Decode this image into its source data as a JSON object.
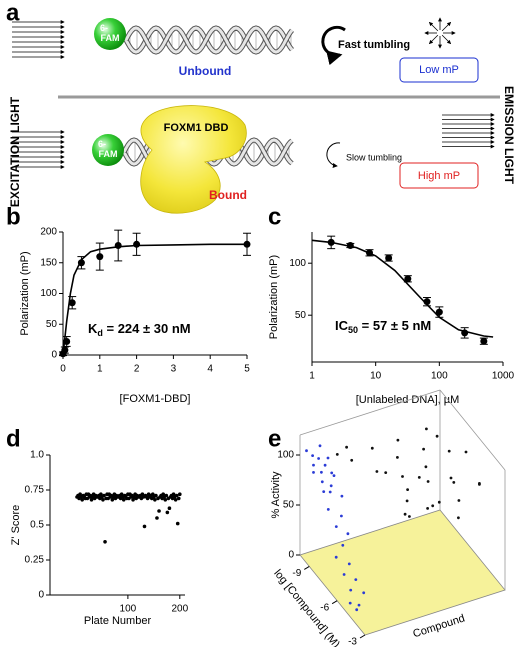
{
  "diagram": {
    "label": "a",
    "top": {
      "fluor": [
        "6-",
        "FAM"
      ],
      "state": "Unbound",
      "tumbling": "Fast tumbling",
      "readout": "Low mP"
    },
    "bottom": {
      "fluor": [
        "6-",
        "FAM"
      ],
      "protein": "FOXM1 DBD",
      "state": "Bound",
      "tumbling": "Slow tumbling",
      "readout": "High mP"
    },
    "left": "EXCITATION LIGHT",
    "right": "EMISSION LIGHT"
  },
  "chart_data": [
    {
      "type": "scatter",
      "label": "b",
      "xlabel": "[FOXM1-DBD]",
      "ylabel": "Polarization (mP)",
      "annotation": {
        "text": "K",
        "sub": "d",
        "rest": " = 224 ± 30 nM"
      },
      "xlim": [
        0,
        5
      ],
      "xticks": [
        0,
        1,
        2,
        3,
        4,
        5
      ],
      "ylim": [
        0,
        200
      ],
      "yticks": [
        0,
        50,
        100,
        150,
        200
      ],
      "series": [
        {
          "mode": "points",
          "color": "#000000",
          "x": [
            0,
            0.05,
            0.1,
            0.25,
            0.5,
            1,
            1.5,
            2,
            5
          ],
          "values": [
            2,
            8,
            22,
            85,
            150,
            160,
            178,
            180,
            180
          ],
          "errors": [
            3,
            5,
            8,
            10,
            10,
            22,
            25,
            18,
            18
          ]
        },
        {
          "mode": "line",
          "color": "#000000",
          "x": [
            0,
            0.1,
            0.2,
            0.3,
            0.5,
            0.75,
            1,
            1.5,
            2,
            3,
            4,
            5
          ],
          "values": [
            0,
            55,
            100,
            130,
            155,
            168,
            172,
            176,
            178,
            179,
            180,
            180
          ]
        }
      ]
    },
    {
      "type": "scatter",
      "label": "c",
      "xlabel": "[Unlabeled DNA], µM",
      "ylabel": "Polarization (mP)",
      "annotation": {
        "text": "IC",
        "sub": "50",
        "rest": " = 57 ± 5 nM"
      },
      "xscale": "log",
      "xlim": [
        1,
        1000
      ],
      "xticks": [
        1,
        10,
        100,
        1000
      ],
      "ylim": [
        5,
        130
      ],
      "yticks": [
        50,
        100
      ],
      "series": [
        {
          "mode": "points",
          "color": "#000000",
          "x": [
            2,
            4,
            8,
            16,
            32,
            64,
            100,
            250,
            500
          ],
          "values": [
            120,
            117,
            110,
            105,
            85,
            63,
            53,
            33,
            25
          ],
          "errors": [
            6,
            2,
            3,
            3,
            3,
            4,
            5,
            5,
            3
          ]
        },
        {
          "mode": "line",
          "color": "#000000",
          "x": [
            1,
            2,
            5,
            10,
            20,
            50,
            100,
            200,
            500,
            700
          ],
          "values": [
            122,
            120,
            115,
            107,
            93,
            67,
            48,
            36,
            30,
            29
          ]
        }
      ]
    },
    {
      "type": "scatter",
      "label": "d",
      "xlabel": "Plate Number",
      "ylabel": "Z' Score",
      "xlim": [
        -50,
        210
      ],
      "xticks": [
        100,
        200
      ],
      "ylim": [
        0,
        1
      ],
      "yticks": [
        0,
        0.25,
        0.5,
        0.75,
        {
          "value": 1,
          "label": "1.0"
        }
      ],
      "series": [
        {
          "mode": "points",
          "color": "#000000",
          "x": [
            2,
            4,
            6,
            8,
            10,
            12,
            14,
            16,
            18,
            20,
            22,
            24,
            26,
            28,
            30,
            32,
            34,
            36,
            38,
            40,
            42,
            44,
            46,
            48,
            50,
            52,
            54,
            56,
            58,
            60,
            62,
            64,
            66,
            68,
            70,
            72,
            74,
            76,
            78,
            80,
            82,
            84,
            86,
            88,
            90,
            92,
            94,
            96,
            98,
            100,
            102,
            104,
            106,
            108,
            110,
            112,
            114,
            116,
            118,
            120,
            122,
            124,
            126,
            128,
            130,
            132,
            134,
            136,
            138,
            140,
            142,
            144,
            146,
            148,
            150,
            152,
            154,
            156,
            158,
            160,
            162,
            164,
            166,
            168,
            170,
            172,
            174,
            176,
            178,
            180,
            182,
            184,
            186,
            188,
            190,
            192,
            194,
            196,
            198,
            200
          ],
          "values": [
            0.7,
            0.71,
            0.69,
            0.72,
            0.7,
            0.68,
            0.71,
            0.7,
            0.69,
            0.72,
            0.69,
            0.72,
            0.7,
            0.71,
            0.68,
            0.7,
            0.72,
            0.69,
            0.71,
            0.7,
            0.7,
            0.71,
            0.69,
            0.72,
            0.7,
            0.68,
            0.71,
            0.38,
            0.69,
            0.72,
            0.69,
            0.72,
            0.7,
            0.71,
            0.68,
            0.7,
            0.72,
            0.69,
            0.71,
            0.7,
            0.7,
            0.71,
            0.69,
            0.72,
            0.7,
            0.68,
            0.71,
            0.7,
            0.69,
            0.72,
            0.69,
            0.72,
            0.7,
            0.71,
            0.68,
            0.7,
            0.72,
            0.69,
            0.71,
            0.7,
            0.7,
            0.71,
            0.69,
            0.72,
            0.7,
            0.49,
            0.71,
            0.7,
            0.69,
            0.72,
            0.7,
            0.71,
            0.69,
            0.72,
            0.7,
            0.68,
            0.71,
            0.55,
            0.69,
            0.6,
            0.7,
            0.71,
            0.69,
            0.72,
            0.7,
            0.68,
            0.71,
            0.59,
            0.69,
            0.62,
            0.7,
            0.71,
            0.69,
            0.72,
            0.7,
            0.68,
            0.71,
            0.51,
            0.69,
            0.72
          ]
        }
      ]
    },
    {
      "type": "scatter3d",
      "label": "e",
      "xlabel": "log [Compound] (M)",
      "ylabel": "% Activity",
      "zlabel": "Compound",
      "xlim": [
        -10,
        -3
      ],
      "xticks": [
        -9,
        -6,
        -3
      ],
      "ylim": [
        0,
        120
      ],
      "yticks": [
        0,
        50,
        100
      ],
      "zlim": [
        0,
        100
      ],
      "floor_color": "#f6f29a",
      "series": [
        {
          "color": "#2b3cd6",
          "x": [
            -9.6,
            -9.4,
            -9.2,
            -9.0,
            -8.8,
            -8.6,
            -8.4,
            -8.2,
            -8.0,
            -7.8,
            -7.6,
            -7.4,
            -7.2,
            -7.0,
            -6.8,
            -6.6,
            -6.4,
            -6.2,
            -6.0,
            -5.8,
            -5.6,
            -5.4,
            -5.2,
            -5.0,
            -4.8,
            -9.5,
            -9.1,
            -8.7,
            -8.3,
            -7.9
          ],
          "z": [
            2,
            5,
            8,
            3,
            10,
            6,
            12,
            4,
            9,
            7,
            14,
            3,
            11,
            6,
            13,
            8,
            2,
            10,
            5,
            12,
            7,
            15,
            4,
            9,
            6,
            11,
            14,
            1,
            13,
            3
          ],
          "values": [
            108,
            104,
            102,
            100,
            99,
            96,
            95,
            92,
            88,
            85,
            80,
            74,
            66,
            60,
            52,
            45,
            38,
            30,
            24,
            18,
            12,
            8,
            5,
            3,
            2,
            110,
            101,
            97,
            93,
            86
          ]
        },
        {
          "color": "#111111",
          "x": [
            -9.5,
            -9,
            -8.5,
            -8,
            -7.5,
            -7,
            -6.5,
            -6,
            -5.5,
            -5,
            -4.5,
            -4,
            -3.5,
            -9.2,
            -8.2,
            -7.2,
            -6.2,
            -5.2,
            -4.2,
            -3.2,
            -8.8,
            -7.8,
            -6.8,
            -5.8,
            -4.8,
            -3.8,
            -9,
            -7,
            -5,
            -3.5
          ],
          "z": [
            30,
            45,
            60,
            75,
            90,
            35,
            50,
            65,
            80,
            95,
            40,
            55,
            70,
            85,
            25,
            100,
            60,
            45,
            75,
            30,
            90,
            55,
            40,
            80,
            65,
            50,
            20,
            70,
            95,
            35
          ],
          "values": [
            100,
            98,
            105,
            95,
            92,
            102,
            96,
            90,
            88,
            85,
            99,
            93,
            80,
            97,
            104,
            90,
            94,
            100,
            87,
            105,
            92,
            98,
            101,
            89,
            83,
            95,
            103,
            91,
            86,
            97
          ]
        }
      ]
    }
  ]
}
